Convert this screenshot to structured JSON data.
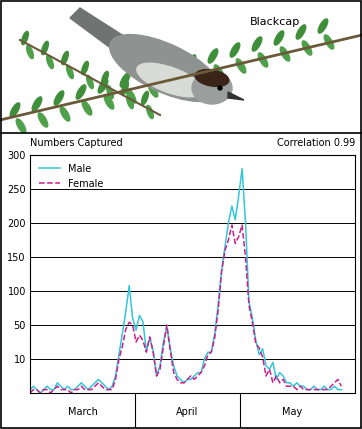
{
  "chart_data": {
    "type": "line",
    "title": "Blackcap",
    "y_label": "Numbers Captured",
    "annotation": "Correlation 0.99",
    "x": [
      0,
      1,
      2,
      3,
      4,
      5,
      6,
      7,
      8,
      9,
      10,
      11,
      12,
      13,
      14,
      15,
      16,
      17,
      18,
      19,
      20,
      21,
      22,
      23,
      24,
      25,
      26,
      27,
      28,
      29,
      30,
      31,
      32,
      33,
      34,
      35,
      36,
      37,
      38,
      39,
      40,
      41,
      42,
      43,
      44,
      45,
      46,
      47,
      48,
      49,
      50,
      51,
      52,
      53,
      54,
      55,
      56,
      57,
      58,
      59,
      60,
      61,
      62,
      63,
      64,
      65,
      66,
      67,
      68,
      69,
      70,
      71,
      72,
      73,
      74,
      75,
      76,
      77,
      78,
      79,
      80,
      81,
      82,
      83,
      84,
      85,
      86,
      87,
      88,
      89,
      90,
      91
    ],
    "series": [
      {
        "name": "Male",
        "color": "#33c6d9",
        "line_style": "solid",
        "values": [
          1,
          2,
          1,
          0,
          1,
          2,
          1,
          1,
          3,
          2,
          1,
          2,
          1,
          1,
          2,
          3,
          2,
          1,
          2,
          3,
          4,
          3,
          2,
          1,
          2,
          5,
          15,
          40,
          70,
          108,
          60,
          44,
          64,
          55,
          20,
          35,
          20,
          5,
          8,
          30,
          48,
          22,
          8,
          5,
          4,
          3,
          4,
          4,
          5,
          6,
          6,
          10,
          18,
          18,
          40,
          80,
          130,
          165,
          200,
          225,
          205,
          240,
          280,
          200,
          85,
          60,
          32,
          15,
          22,
          8,
          7,
          9,
          4,
          6,
          5,
          3,
          3,
          2,
          3,
          2,
          2,
          1,
          1,
          2,
          1,
          1,
          2,
          1,
          1,
          2,
          1,
          1
        ]
      },
      {
        "name": "Female",
        "color": "#cc1f8a",
        "line_style": "dashed",
        "values": [
          0,
          1,
          1,
          0,
          1,
          1,
          0,
          1,
          2,
          1,
          1,
          1,
          0,
          1,
          1,
          2,
          1,
          1,
          1,
          2,
          3,
          2,
          1,
          1,
          1,
          4,
          10,
          25,
          45,
          54,
          50,
          30,
          38,
          32,
          18,
          36,
          18,
          5,
          7,
          25,
          50,
          20,
          6,
          4,
          3,
          3,
          4,
          5,
          4,
          5,
          6,
          8,
          15,
          18,
          35,
          72,
          128,
          160,
          175,
          197,
          170,
          180,
          197,
          150,
          79,
          54,
          28,
          23,
          12,
          5,
          7,
          3,
          5,
          3,
          4,
          2,
          2,
          2,
          1,
          2,
          1,
          1,
          1,
          1,
          1,
          1,
          1,
          1,
          2,
          3,
          4,
          2
        ]
      }
    ],
    "xlim": [
      0,
      95
    ],
    "xticks": [
      {
        "value": 15.5,
        "label": "March"
      },
      {
        "value": 46,
        "label": "April"
      },
      {
        "value": 76.5,
        "label": "May"
      }
    ],
    "ylim": [
      0,
      300
    ],
    "yticks": [
      10,
      50,
      100,
      150,
      200,
      250,
      300
    ],
    "grid": true,
    "legend": "upper left"
  }
}
